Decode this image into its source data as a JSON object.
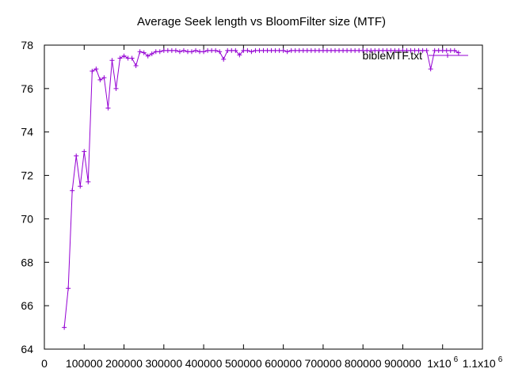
{
  "chart_data": {
    "type": "line",
    "title": "Average Seek length vs BloomFilter size (MTF)",
    "xlabel": "",
    "ylabel": "",
    "xlim": [
      0,
      1100000
    ],
    "ylim": [
      64,
      78
    ],
    "x_ticks": [
      {
        "value": 0,
        "label": "0"
      },
      {
        "value": 100000,
        "label": "100000"
      },
      {
        "value": 200000,
        "label": "200000"
      },
      {
        "value": 300000,
        "label": "300000"
      },
      {
        "value": 400000,
        "label": "400000"
      },
      {
        "value": 500000,
        "label": "500000"
      },
      {
        "value": 600000,
        "label": "600000"
      },
      {
        "value": 700000,
        "label": "700000"
      },
      {
        "value": 800000,
        "label": "800000"
      },
      {
        "value": 900000,
        "label": "900000"
      },
      {
        "value": 1000000,
        "label": "1x10",
        "sup": "6"
      },
      {
        "value": 1100000,
        "label": "1.1x10",
        "sup": "6"
      }
    ],
    "y_ticks": [
      64,
      66,
      68,
      70,
      72,
      74,
      76,
      78
    ],
    "grid": false,
    "legend": "top-right",
    "series": [
      {
        "name": "bibleMTF.txt",
        "color": "#9400d3",
        "marker": "plus",
        "x": [
          50000,
          60000,
          70000,
          80000,
          90000,
          100000,
          110000,
          120000,
          130000,
          140000,
          150000,
          160000,
          170000,
          180000,
          190000,
          200000,
          210000,
          220000,
          230000,
          240000,
          250000,
          260000,
          270000,
          280000,
          290000,
          300000,
          310000,
          320000,
          330000,
          340000,
          350000,
          360000,
          370000,
          380000,
          390000,
          400000,
          410000,
          420000,
          430000,
          440000,
          450000,
          460000,
          470000,
          480000,
          490000,
          500000,
          510000,
          520000,
          530000,
          540000,
          550000,
          560000,
          570000,
          580000,
          590000,
          600000,
          610000,
          620000,
          630000,
          640000,
          650000,
          660000,
          670000,
          680000,
          690000,
          700000,
          710000,
          720000,
          730000,
          740000,
          750000,
          760000,
          770000,
          780000,
          790000,
          800000,
          810000,
          820000,
          830000,
          840000,
          850000,
          860000,
          870000,
          880000,
          890000,
          900000,
          910000,
          920000,
          930000,
          940000,
          950000,
          960000,
          970000,
          980000,
          990000,
          1000000,
          1010000,
          1020000,
          1030000,
          1040000
        ],
        "y": [
          65.0,
          66.8,
          71.3,
          72.9,
          71.5,
          73.1,
          71.7,
          76.8,
          76.9,
          76.4,
          76.5,
          75.1,
          77.3,
          76.0,
          77.4,
          77.5,
          77.4,
          77.4,
          77.05,
          77.7,
          77.65,
          77.5,
          77.6,
          77.7,
          77.7,
          77.75,
          77.75,
          77.75,
          77.75,
          77.7,
          77.75,
          77.7,
          77.7,
          77.75,
          77.7,
          77.7,
          77.75,
          77.75,
          77.75,
          77.7,
          77.35,
          77.75,
          77.75,
          77.75,
          77.55,
          77.75,
          77.75,
          77.7,
          77.75,
          77.75,
          77.75,
          77.75,
          77.75,
          77.75,
          77.75,
          77.75,
          77.7,
          77.75,
          77.75,
          77.75,
          77.75,
          77.75,
          77.75,
          77.75,
          77.75,
          77.75,
          77.75,
          77.75,
          77.75,
          77.75,
          77.75,
          77.75,
          77.75,
          77.75,
          77.75,
          77.75,
          77.75,
          77.75,
          77.75,
          77.75,
          77.75,
          77.75,
          77.75,
          77.75,
          77.75,
          77.75,
          77.75,
          77.75,
          77.75,
          77.75,
          77.75,
          77.75,
          76.9,
          77.75,
          77.75,
          77.75,
          77.75,
          77.75,
          77.75,
          77.65
        ]
      }
    ]
  }
}
